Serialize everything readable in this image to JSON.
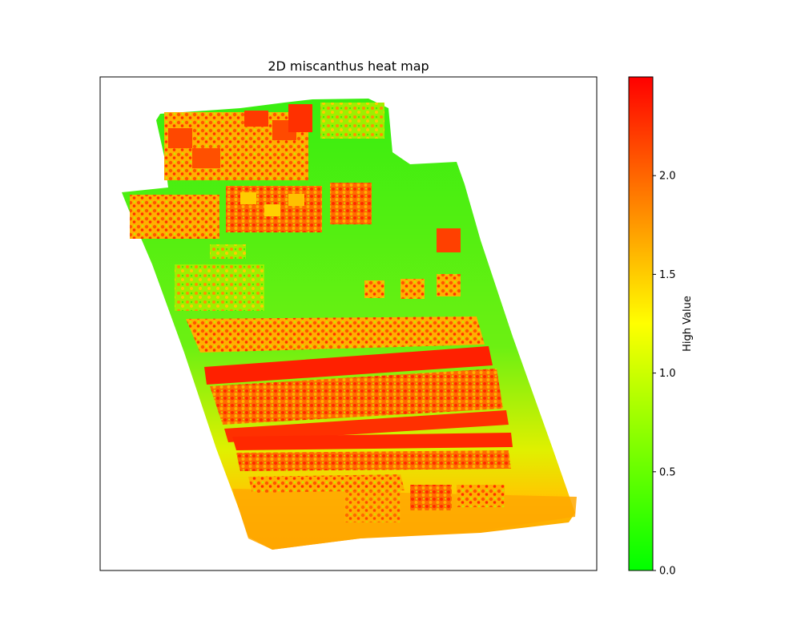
{
  "chart_data": {
    "type": "heatmap",
    "title": "2D miscanthus heat map",
    "xlabel": "",
    "ylabel": "",
    "axes_ticks_visible": false,
    "colorbar": {
      "label": "High Value",
      "range": [
        0.0,
        2.5
      ],
      "ticks": [
        0.0,
        0.5,
        1.0,
        1.5,
        2.0
      ],
      "tick_labels": [
        "0.0",
        "0.5",
        "1.0",
        "1.5",
        "2.0"
      ],
      "colormap": [
        "#00ff00",
        "#ffff00",
        "#ff0000"
      ]
    }
  }
}
